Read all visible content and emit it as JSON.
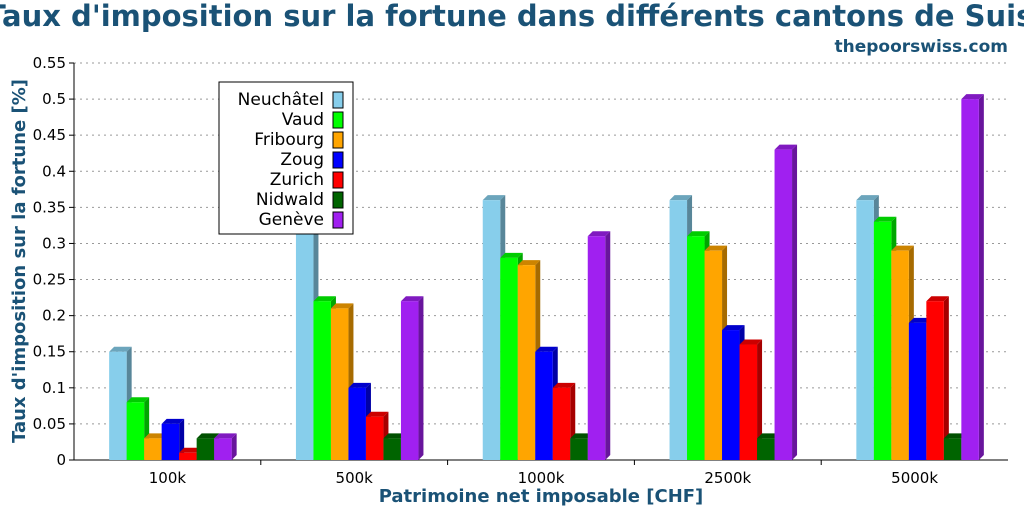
{
  "chart_data": {
    "type": "bar",
    "title": "Taux d'imposition sur la fortune dans différents cantons de Suisse",
    "source": "thepoorswiss.com",
    "xlabel": "Patrimoine net imposable [CHF]",
    "ylabel": "Taux d'imposition sur la fortune [%]",
    "categories": [
      "100k",
      "500k",
      "1000k",
      "2500k",
      "5000k"
    ],
    "ylim": [
      0,
      0.55
    ],
    "yticks": [
      "0",
      "0.05",
      "0.1",
      "0.15",
      "0.2",
      "0.25",
      "0.3",
      "0.35",
      "0.4",
      "0.45",
      "0.5",
      "0.55"
    ],
    "grid": true,
    "legend_position": "top-left",
    "series": [
      {
        "name": "Neuchâtel",
        "color": "#87ceeb",
        "values": [
          0.15,
          0.36,
          0.36,
          0.36,
          0.36
        ]
      },
      {
        "name": "Vaud",
        "color": "#00ff00",
        "values": [
          0.08,
          0.22,
          0.28,
          0.31,
          0.33
        ]
      },
      {
        "name": "Fribourg",
        "color": "#ffa500",
        "values": [
          0.03,
          0.21,
          0.27,
          0.29,
          0.29
        ]
      },
      {
        "name": "Zoug",
        "color": "#0000ff",
        "values": [
          0.05,
          0.1,
          0.15,
          0.18,
          0.19
        ]
      },
      {
        "name": "Zurich",
        "color": "#ff0000",
        "values": [
          0.01,
          0.06,
          0.1,
          0.16,
          0.22
        ]
      },
      {
        "name": "Nidwald",
        "color": "#006400",
        "values": [
          0.03,
          0.03,
          0.03,
          0.03,
          0.03
        ]
      },
      {
        "name": "Genève",
        "color": "#a020f0",
        "values": [
          0.03,
          0.22,
          0.31,
          0.43,
          0.5
        ]
      }
    ]
  }
}
